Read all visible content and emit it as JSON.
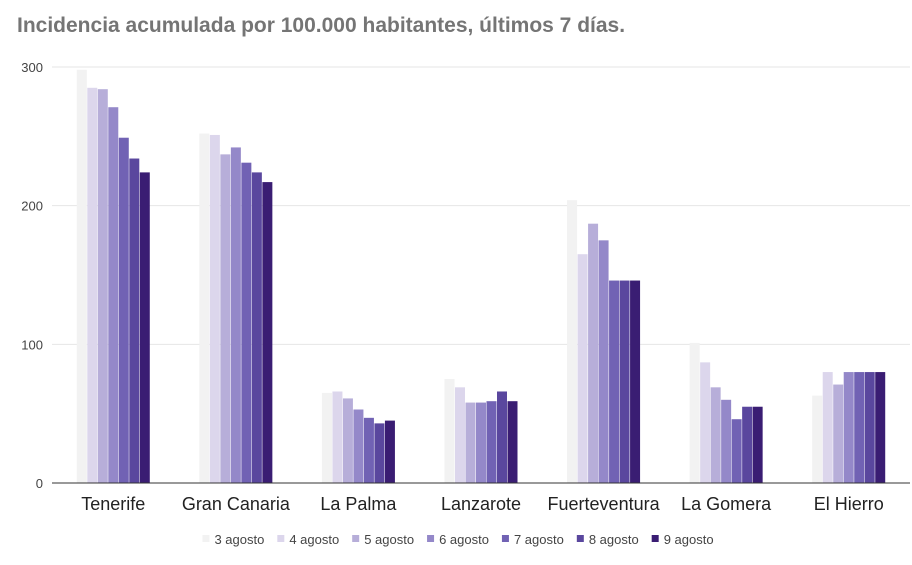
{
  "chart_data": {
    "type": "bar",
    "title": "Incidencia acumulada por 100.000 habitantes, últimos 7 días.",
    "xlabel": "",
    "ylabel": "",
    "ylim": [
      0,
      300
    ],
    "yticks": [
      0,
      100,
      200,
      300
    ],
    "grid": true,
    "legend_position": "bottom",
    "categories": [
      "Tenerife",
      "Gran Canaria",
      "La Palma",
      "Lanzarote",
      "Fuerteventura",
      "La Gomera",
      "El Hierro"
    ],
    "series": [
      {
        "name": "3 agosto",
        "color": "#f2f2f2",
        "values": [
          298,
          252,
          65,
          75,
          204,
          101,
          63
        ]
      },
      {
        "name": "4 agosto",
        "color": "#dcd6ec",
        "values": [
          285,
          251,
          66,
          69,
          165,
          87,
          80
        ]
      },
      {
        "name": "5 agosto",
        "color": "#b7aed9",
        "values": [
          284,
          237,
          61,
          58,
          187,
          69,
          71
        ]
      },
      {
        "name": "6 agosto",
        "color": "#9488c9",
        "values": [
          271,
          242,
          53,
          58,
          175,
          60,
          80
        ]
      },
      {
        "name": "7 agosto",
        "color": "#7162b4",
        "values": [
          249,
          231,
          47,
          59,
          146,
          46,
          80
        ]
      },
      {
        "name": "8 agosto",
        "color": "#5a479e",
        "values": [
          234,
          224,
          43,
          66,
          146,
          55,
          80
        ]
      },
      {
        "name": "9 agosto",
        "color": "#3a1d73",
        "values": [
          224,
          217,
          45,
          59,
          146,
          55,
          80
        ]
      }
    ]
  }
}
